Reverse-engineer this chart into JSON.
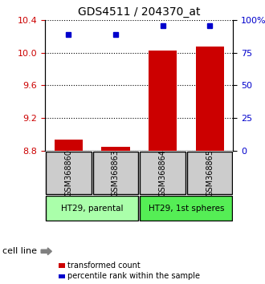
{
  "title": "GDS4511 / 204370_at",
  "samples": [
    "GSM368860",
    "GSM368863",
    "GSM368864",
    "GSM368865"
  ],
  "bar_values": [
    8.93,
    8.85,
    10.02,
    10.07
  ],
  "bar_base": 8.8,
  "dot_values": [
    10.22,
    10.22,
    10.33,
    10.33
  ],
  "left_ylim": [
    8.8,
    10.4
  ],
  "left_yticks": [
    8.8,
    9.2,
    9.6,
    10.0,
    10.4
  ],
  "right_ylim": [
    0,
    100
  ],
  "right_yticks": [
    0,
    25,
    50,
    75,
    100
  ],
  "right_yticklabels": [
    "0",
    "25",
    "50",
    "75",
    "100%"
  ],
  "bar_color": "#cc0000",
  "dot_color": "#0000cc",
  "grid_color": "#000000",
  "cell_groups": [
    {
      "label": "HT29, parental",
      "color": "#aaffaa",
      "samples": [
        0,
        1
      ]
    },
    {
      "label": "HT29, 1st spheres",
      "color": "#55ee55",
      "samples": [
        2,
        3
      ]
    }
  ],
  "cell_line_label": "cell line",
  "legend_items": [
    {
      "color": "#cc0000",
      "label": "transformed count"
    },
    {
      "color": "#0000cc",
      "label": "percentile rank within the sample"
    }
  ],
  "bar_width": 0.6,
  "sample_box_color": "#cccccc",
  "sample_box_edge": "#000000",
  "bar_linewidth": 8
}
